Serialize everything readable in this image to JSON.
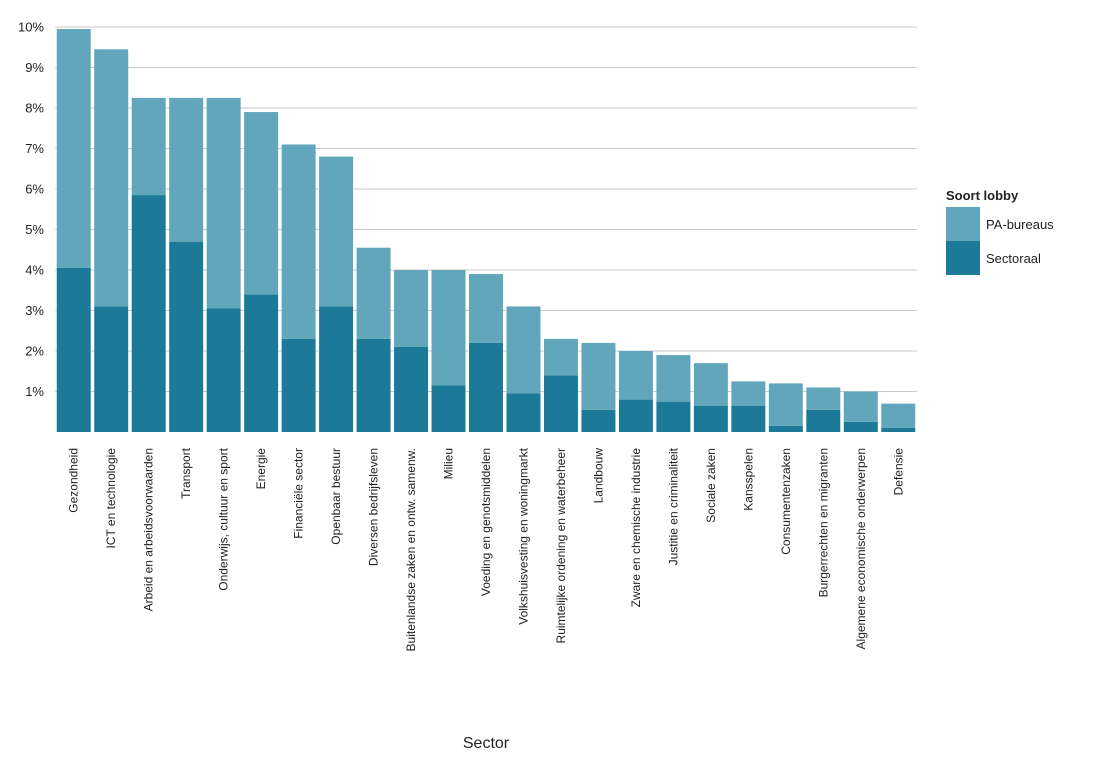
{
  "chart_data": {
    "type": "bar",
    "stacked": true,
    "xlabel": "Sector",
    "ylabel": "",
    "ylim": [
      0,
      10
    ],
    "yticks": [
      "1%",
      "2%",
      "3%",
      "4%",
      "5%",
      "6%",
      "7%",
      "8%",
      "9%",
      "10%"
    ],
    "grid": true,
    "legend": {
      "title": "Soort lobby",
      "placement": "right"
    },
    "categories": [
      "Gezondheid",
      "ICT en technologie",
      "Arbeid en arbeidsvoorwaarden",
      "Transport",
      "Onderwijs, cultuur en sport",
      "Energie",
      "Financiële sector",
      "Openbaar bestuur",
      "Diversen bedrijfsleven",
      "Buitenlandse zaken en ontw. samenw.",
      "Milieu",
      "Voeding en genotsmiddelen",
      "Volkshuisvesting en woningmarkt",
      "Ruimtelijke ordening en waterbeheer",
      "Landbouw",
      "Zware en chemische industrie",
      "Justitie en criminaliteit",
      "Sociale zaken",
      "Kansspelen",
      "Consumentenzaken",
      "Burgerrechten en migranten",
      "Algemene economische onderwerpen",
      "Defensie"
    ],
    "series": [
      {
        "name": "Sectoraal",
        "color": "#1c7a98",
        "values": [
          4.05,
          3.1,
          5.85,
          4.7,
          3.05,
          3.4,
          2.3,
          3.1,
          2.3,
          2.1,
          1.15,
          2.2,
          0.95,
          1.4,
          0.55,
          0.8,
          0.75,
          0.65,
          0.65,
          0.15,
          0.55,
          0.25,
          0.1
        ]
      },
      {
        "name": "PA-bureaus",
        "color": "#62a6bc",
        "values": [
          5.9,
          6.35,
          2.4,
          3.55,
          5.2,
          4.5,
          4.8,
          3.7,
          2.25,
          1.9,
          2.85,
          1.7,
          2.15,
          0.9,
          1.65,
          1.2,
          1.15,
          1.05,
          0.6,
          1.05,
          0.55,
          0.75,
          0.6
        ]
      }
    ]
  }
}
